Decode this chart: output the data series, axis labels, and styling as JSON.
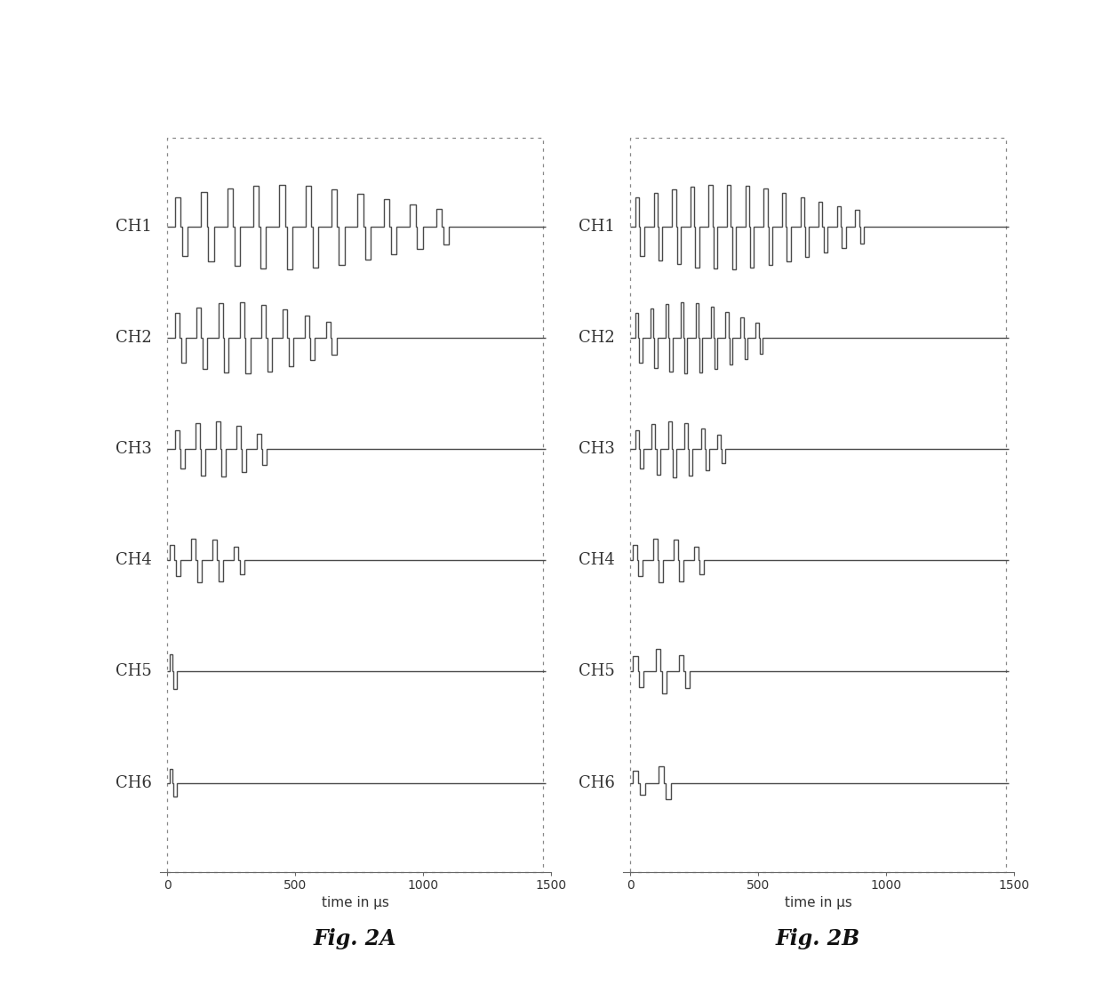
{
  "fig_title_a": "Fig. 2A",
  "fig_title_b": "Fig. 2B",
  "xlabel": "time in μs",
  "xticks": [
    0,
    500,
    1000,
    1500
  ],
  "xlim": [
    -30,
    1500
  ],
  "channels": [
    "CH1",
    "CH2",
    "CH3",
    "CH4",
    "CH5",
    "CH6"
  ],
  "background_color": "#ffffff",
  "panel_a": {
    "ch_pulses": [
      11,
      8,
      5,
      4,
      1,
      1
    ],
    "ch_starts": [
      30,
      30,
      30,
      10,
      10,
      10
    ],
    "ch_ends": [
      1050,
      620,
      350,
      260,
      80,
      70
    ],
    "ch_scales": [
      0.38,
      0.32,
      0.25,
      0.2,
      0.22,
      0.18
    ]
  },
  "panel_b": {
    "ch_pulses": [
      13,
      9,
      6,
      4,
      3,
      2
    ],
    "ch_starts": [
      20,
      20,
      20,
      10,
      10,
      10
    ],
    "ch_ends": [
      880,
      490,
      340,
      250,
      190,
      110
    ],
    "ch_scales": [
      0.38,
      0.32,
      0.25,
      0.2,
      0.2,
      0.16
    ]
  }
}
